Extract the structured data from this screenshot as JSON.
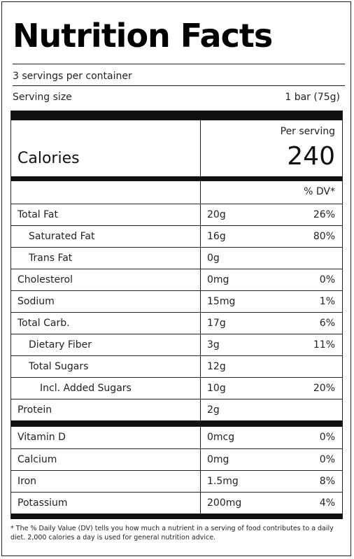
{
  "title": "Nutrition Facts",
  "servings_per_container": "3 servings per container",
  "serving_size": {
    "label": "Serving size",
    "value": "1 bar (75g)"
  },
  "per_serving_label": "Per serving",
  "calories": {
    "label": "Calories",
    "value": "240"
  },
  "dv_header": "% DV*",
  "nutrients": [
    {
      "name": "Total Fat",
      "amount": "20g",
      "dv": "26%",
      "indent": 0
    },
    {
      "name": "Saturated Fat",
      "amount": "16g",
      "dv": "80%",
      "indent": 1
    },
    {
      "name": "Trans Fat",
      "amount": "0g",
      "dv": "",
      "indent": 1
    },
    {
      "name": "Cholesterol",
      "amount": "0mg",
      "dv": "0%",
      "indent": 0
    },
    {
      "name": "Sodium",
      "amount": "15mg",
      "dv": "1%",
      "indent": 0
    },
    {
      "name": "Total Carb.",
      "amount": "17g",
      "dv": "6%",
      "indent": 0
    },
    {
      "name": "Dietary Fiber",
      "amount": "3g",
      "dv": "11%",
      "indent": 1
    },
    {
      "name": "Total Sugars",
      "amount": "12g",
      "dv": "",
      "indent": 1
    },
    {
      "name": "Incl. Added Sugars",
      "amount": "10g",
      "dv": "20%",
      "indent": 2
    },
    {
      "name": "Protein",
      "amount": "2g",
      "dv": "",
      "indent": 0
    }
  ],
  "vitamins": [
    {
      "name": "Vitamin D",
      "amount": "0mcg",
      "dv": "0%"
    },
    {
      "name": "Calcium",
      "amount": "0mg",
      "dv": "0%"
    },
    {
      "name": "Iron",
      "amount": "1.5mg",
      "dv": "8%"
    },
    {
      "name": "Potassium",
      "amount": "200mg",
      "dv": "4%"
    }
  ],
  "footnote": "* The % Daily Value (DV) tells you how much a nutrient in a serving of food contributes to a daily diet. 2,000 calories a day is used for general nutrition advice."
}
